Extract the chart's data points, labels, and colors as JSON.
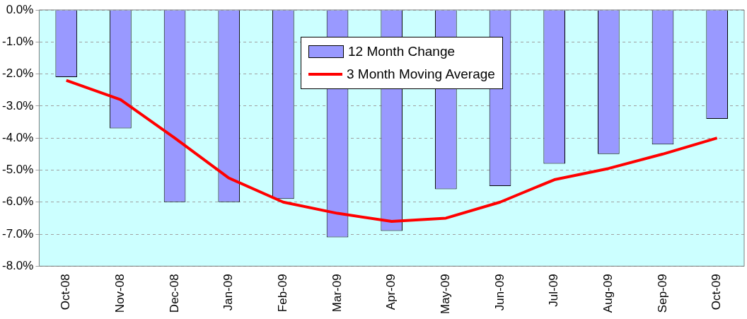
{
  "chart_data": {
    "type": "bar",
    "categories": [
      "Oct-08",
      "Nov-08",
      "Dec-08",
      "Jan-09",
      "Feb-09",
      "Mar-09",
      "Apr-09",
      "May-09",
      "Jun-09",
      "Jul-09",
      "Aug-09",
      "Sep-09",
      "Oct-09"
    ],
    "series": [
      {
        "name": "12 Month Change",
        "color": "#9999ff",
        "values": [
          -2.1,
          -3.7,
          -6.0,
          -6.0,
          -5.9,
          -7.1,
          -6.9,
          -5.6,
          -5.5,
          -4.8,
          -4.5,
          -4.2,
          -3.4
        ]
      },
      {
        "name": "3 Month Moving Average",
        "type": "line",
        "color": "#ff0000",
        "values": [
          -2.2,
          -2.8,
          -4.0,
          -5.25,
          -6.0,
          -6.35,
          -6.6,
          -6.5,
          -6.0,
          -5.3,
          -4.95,
          -4.5,
          -4.0
        ]
      }
    ],
    "ylim": [
      -8,
      0
    ],
    "yticks": [
      {
        "value": -8,
        "label": "-8.0%"
      },
      {
        "value": -7,
        "label": "-7.0%"
      },
      {
        "value": -6,
        "label": "-6.0%"
      },
      {
        "value": -5,
        "label": "-5.0%"
      },
      {
        "value": -4,
        "label": "-4.0%"
      },
      {
        "value": -3,
        "label": "-3.0%"
      },
      {
        "value": -2,
        "label": "-2.0%"
      },
      {
        "value": -1,
        "label": "-1.0%"
      },
      {
        "value": 0,
        "label": "0.0%"
      }
    ],
    "grid": "y",
    "legend": "top",
    "marker": "none",
    "line_style": "solid"
  }
}
